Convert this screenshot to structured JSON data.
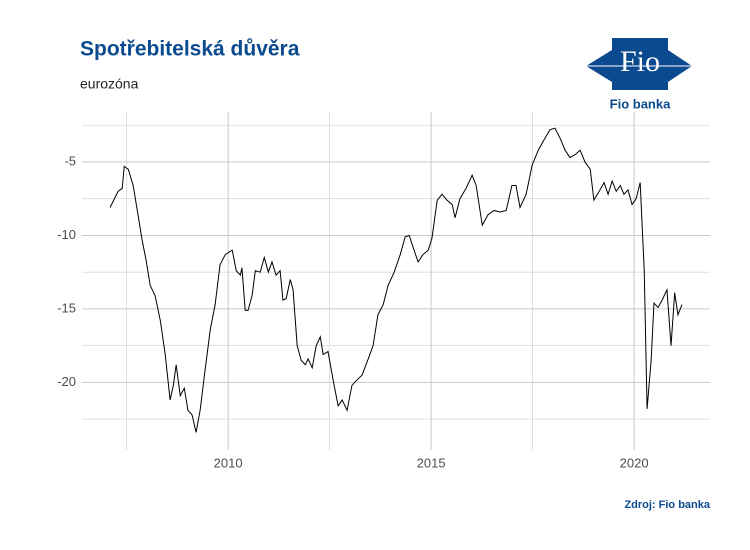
{
  "chart_data": {
    "type": "line",
    "title": "Spotřebitelská důvěra",
    "subtitle": "eurozóna",
    "source": "Zdroj: Fio banka",
    "logo": {
      "mark": "Fio",
      "caption": "Fio banka"
    },
    "x": [
      2007.09,
      2007.29,
      2007.39,
      2007.44,
      2007.54,
      2007.66,
      2007.78,
      2007.88,
      2007.98,
      2008.08,
      2008.2,
      2008.33,
      2008.45,
      2008.57,
      2008.65,
      2008.72,
      2008.82,
      2008.92,
      2009.01,
      2009.11,
      2009.21,
      2009.31,
      2009.43,
      2009.56,
      2009.68,
      2009.8,
      2009.93,
      2010.1,
      2010.2,
      2010.3,
      2010.34,
      2010.42,
      2010.49,
      2010.59,
      2010.67,
      2010.79,
      2010.89,
      2010.99,
      2011.08,
      2011.18,
      2011.28,
      2011.35,
      2011.43,
      2011.53,
      2011.6,
      2011.7,
      2011.8,
      2011.9,
      2011.97,
      2012.07,
      2012.17,
      2012.27,
      2012.34,
      2012.46,
      2012.59,
      2012.71,
      2012.81,
      2012.93,
      2013.05,
      2013.15,
      2013.3,
      2013.45,
      2013.57,
      2013.69,
      2013.82,
      2013.94,
      2014.09,
      2014.24,
      2014.36,
      2014.46,
      2014.58,
      2014.68,
      2014.8,
      2014.93,
      2015.02,
      2015.15,
      2015.27,
      2015.39,
      2015.52,
      2015.59,
      2015.71,
      2015.86,
      2016.01,
      2016.11,
      2016.26,
      2016.4,
      2016.55,
      2016.7,
      2016.85,
      2016.99,
      2017.09,
      2017.19,
      2017.34,
      2017.49,
      2017.64,
      2017.78,
      2017.93,
      2018.05,
      2018.18,
      2018.3,
      2018.42,
      2018.55,
      2018.67,
      2018.79,
      2018.92,
      2019.01,
      2019.14,
      2019.26,
      2019.36,
      2019.46,
      2019.56,
      2019.66,
      2019.75,
      2019.85,
      2019.95,
      2020.05,
      2020.15,
      2020.25,
      2020.32,
      2020.42,
      2020.49,
      2020.59,
      2020.69,
      2020.81,
      2020.91,
      2021.0,
      2021.08,
      2021.18
    ],
    "values": [
      -8.1,
      -7.0,
      -6.8,
      -5.3,
      -5.5,
      -6.6,
      -8.6,
      -10.3,
      -11.7,
      -13.4,
      -14.1,
      -15.8,
      -18.1,
      -21.2,
      -20.2,
      -18.8,
      -20.9,
      -20.4,
      -21.9,
      -22.2,
      -23.4,
      -21.9,
      -19.2,
      -16.4,
      -14.7,
      -12.0,
      -11.3,
      -11.0,
      -12.4,
      -12.7,
      -12.2,
      -15.1,
      -15.1,
      -14.1,
      -12.4,
      -12.5,
      -11.5,
      -12.5,
      -11.8,
      -12.7,
      -12.4,
      -14.4,
      -14.3,
      -13.0,
      -13.7,
      -17.5,
      -18.5,
      -18.8,
      -18.4,
      -19.0,
      -17.5,
      -16.9,
      -18.1,
      -17.9,
      -19.9,
      -21.6,
      -21.2,
      -21.9,
      -20.2,
      -19.9,
      -19.5,
      -18.4,
      -17.5,
      -15.4,
      -14.7,
      -13.4,
      -12.5,
      -11.3,
      -10.1,
      -10.0,
      -11.0,
      -11.8,
      -11.3,
      -11.0,
      -10.2,
      -7.6,
      -7.2,
      -7.6,
      -7.9,
      -8.8,
      -7.5,
      -6.8,
      -5.9,
      -6.6,
      -9.3,
      -8.6,
      -8.3,
      -8.4,
      -8.3,
      -6.6,
      -6.6,
      -8.1,
      -7.2,
      -5.2,
      -4.2,
      -3.5,
      -2.8,
      -2.7,
      -3.4,
      -4.2,
      -4.7,
      -4.5,
      -4.2,
      -5.0,
      -5.5,
      -7.6,
      -7.0,
      -6.4,
      -7.2,
      -6.3,
      -7.0,
      -6.6,
      -7.2,
      -6.9,
      -7.9,
      -7.5,
      -6.4,
      -12.4,
      -21.8,
      -18.5,
      -14.6,
      -14.9,
      -14.4,
      -13.7,
      -17.5,
      -13.9,
      -15.4,
      -14.7
    ],
    "color": "#000000",
    "xlim": [
      2006.4,
      2021.87
    ],
    "xticks": [
      2010,
      2015,
      2020
    ],
    "xticks_minor": [
      2007.5,
      2012.5,
      2017.5
    ],
    "ylim": [
      -24.6,
      -1.6
    ],
    "yticks": [
      -20,
      -15,
      -10,
      -5
    ],
    "yticks_minor": [
      -22.5,
      -17.5,
      -12.5,
      -7.5,
      -2.5
    ],
    "grid": true
  }
}
